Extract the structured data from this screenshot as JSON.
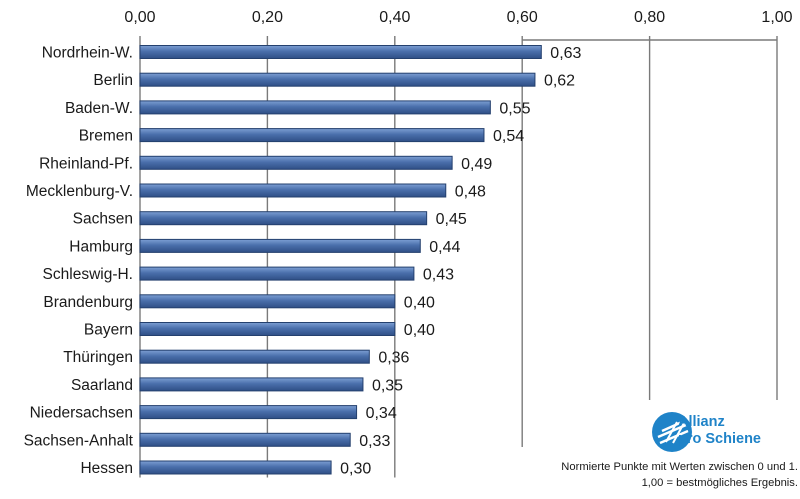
{
  "chart_data": {
    "type": "bar",
    "orientation": "horizontal",
    "categories": [
      "Nordrhein-W.",
      "Berlin",
      "Baden-W.",
      "Bremen",
      "Rheinland-Pf.",
      "Mecklenburg-V.",
      "Sachsen",
      "Hamburg",
      "Schleswig-H.",
      "Brandenburg",
      "Bayern",
      "Thüringen",
      "Saarland",
      "Niedersachsen",
      "Sachsen-Anhalt",
      "Hessen"
    ],
    "values": [
      0.63,
      0.62,
      0.55,
      0.54,
      0.49,
      0.48,
      0.45,
      0.44,
      0.43,
      0.4,
      0.4,
      0.36,
      0.35,
      0.34,
      0.33,
      0.3
    ],
    "value_labels": [
      "0,63",
      "0,62",
      "0,55",
      "0,54",
      "0,49",
      "0,48",
      "0,45",
      "0,44",
      "0,43",
      "0,40",
      "0,40",
      "0,36",
      "0,35",
      "0,34",
      "0,33",
      "0,30"
    ],
    "xlim": [
      0,
      1.0
    ],
    "xticks": [
      0,
      0.2,
      0.4,
      0.6,
      0.8,
      1.0
    ],
    "xtick_labels": [
      "0,00",
      "0,20",
      "0,40",
      "0,60",
      "0,80",
      "1,00"
    ],
    "xaxis_position": "top",
    "grid": true,
    "bar_color": "#4a6fab",
    "bar_edge_color": "#24406e"
  },
  "logo": {
    "line1": "Allianz",
    "line2": "pro Schiene",
    "color": "#1f83c8"
  },
  "footnote": {
    "line1": "Normierte Punkte mit Werten zwischen 0 und 1.",
    "line2": "1,00 = bestmögliches Ergebnis."
  }
}
